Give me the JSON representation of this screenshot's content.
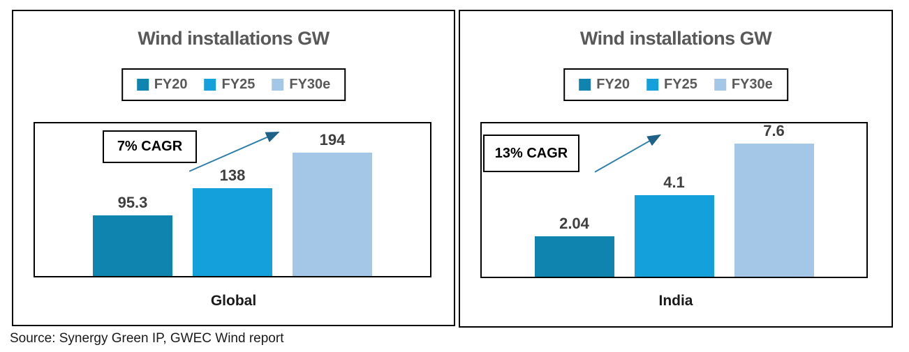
{
  "page": {
    "source_note": "Source: Synergy Green IP, GWEC Wind report"
  },
  "chart_data": [
    {
      "type": "bar",
      "title": "Wind installations GW",
      "categories": [
        "FY20",
        "FY25",
        "FY30e"
      ],
      "values": [
        95.3,
        138,
        194
      ],
      "value_labels": [
        "95.3",
        "138",
        "194"
      ],
      "group_label": "Global",
      "annotation": "7% CAGR",
      "legend_position": "top",
      "grid": false,
      "ylim": [
        0,
        245
      ],
      "series_colors": [
        "#0E84AF",
        "#14A0DA",
        "#A4C7E7"
      ]
    },
    {
      "type": "bar",
      "title": "Wind installations GW",
      "categories": [
        "FY20",
        "FY25",
        "FY30e"
      ],
      "values": [
        2.04,
        4.1,
        7.6
      ],
      "value_labels": [
        "2.04",
        "4.1",
        "7.6"
      ],
      "group_label": "India",
      "annotation": "13% CAGR",
      "legend_position": "top",
      "grid": false,
      "ylim": [
        0,
        7.85
      ],
      "series_colors": [
        "#0E84AF",
        "#14A0DA",
        "#A4C7E7"
      ]
    }
  ],
  "colors": {
    "series_fy20": "#0E84AF",
    "series_fy25": "#14A0DA",
    "series_fy30e": "#A4C7E7",
    "arrow_line": "#2E7FAC",
    "arrow_head": "#1E6387",
    "title_text": "#595959",
    "value_label_text": "#3F3F3F",
    "border": "#000000"
  }
}
